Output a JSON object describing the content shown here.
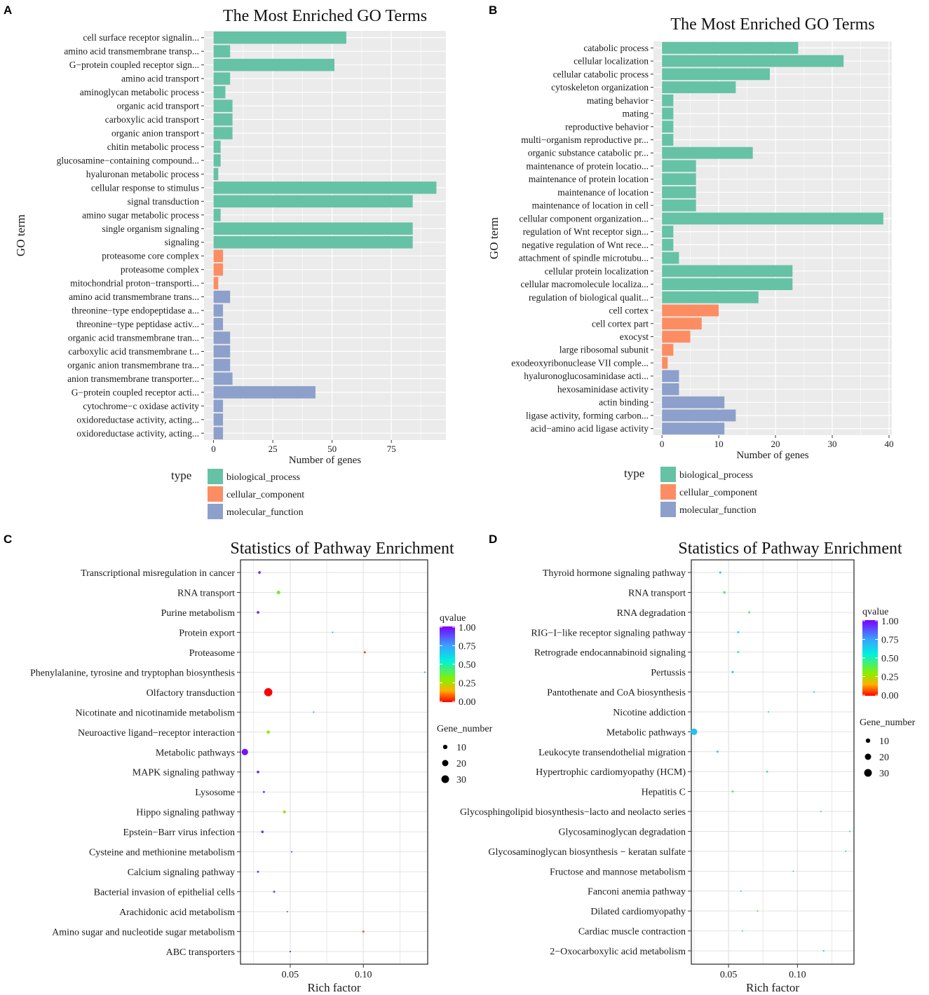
{
  "colors": {
    "biological_process": "#66C2A5",
    "cellular_component": "#FC8D62",
    "molecular_function": "#8DA0CB",
    "panel_bg": "#EBEBEB"
  },
  "panels": {
    "a": "A",
    "b": "B",
    "c": "C",
    "d": "D"
  },
  "chart_data": [
    {
      "id": "A",
      "type": "bar",
      "orientation": "horizontal",
      "title": "The Most Enriched GO Terms",
      "xlabel": "Number of genes",
      "ylabel": "GO term",
      "xlim": [
        -4,
        98
      ],
      "xticks": [
        0,
        25,
        50,
        75
      ],
      "legend_title": "type",
      "legend": [
        "biological_process",
        "cellular_component",
        "molecular_function"
      ],
      "categories": [
        "cell surface receptor signalin...",
        "amino acid transmembrane transp...",
        "G−protein coupled receptor sign...",
        "amino acid transport",
        "aminoglycan metabolic process",
        "organic acid transport",
        "carboxylic acid transport",
        "organic anion transport",
        "chitin metabolic process",
        "glucosamine−containing compound...",
        "hyaluronan metabolic process",
        "cellular response to stimulus",
        "signal transduction",
        "amino sugar metabolic process",
        "single organism signaling",
        "signaling",
        "proteasome core complex",
        "proteasome complex",
        "mitochondrial proton−transporti...",
        "amino acid transmembrane trans...",
        "threonine−type endopeptidase a...",
        "threonine−type peptidase activ...",
        "organic acid transmembrane tran...",
        "carboxylic acid transmembrane t...",
        "organic anion transmembrane tra...",
        "anion transmembrane transporter...",
        "G−protein coupled receptor acti...",
        "cytochrome−c oxidase activity",
        "oxidoreductase activity, acting...",
        "oxidoreductase activity, acting..."
      ],
      "values": [
        56,
        7,
        51,
        7,
        5,
        8,
        8,
        8,
        3,
        3,
        2,
        94,
        84,
        3,
        84,
        84,
        4,
        4,
        2,
        7,
        4,
        4,
        7,
        7,
        7,
        8,
        43,
        4,
        4,
        4
      ],
      "types": [
        "biological_process",
        "biological_process",
        "biological_process",
        "biological_process",
        "biological_process",
        "biological_process",
        "biological_process",
        "biological_process",
        "biological_process",
        "biological_process",
        "biological_process",
        "biological_process",
        "biological_process",
        "biological_process",
        "biological_process",
        "biological_process",
        "cellular_component",
        "cellular_component",
        "cellular_component",
        "molecular_function",
        "molecular_function",
        "molecular_function",
        "molecular_function",
        "molecular_function",
        "molecular_function",
        "molecular_function",
        "molecular_function",
        "molecular_function",
        "molecular_function",
        "molecular_function"
      ]
    },
    {
      "id": "B",
      "type": "bar",
      "orientation": "horizontal",
      "title": "The Most Enriched GO Terms",
      "xlabel": "Number of genes",
      "ylabel": "GO term",
      "xlim": [
        -1.5,
        40.5
      ],
      "xticks": [
        0,
        10,
        20,
        30,
        40
      ],
      "legend_title": "type",
      "legend": [
        "biological_process",
        "cellular_component",
        "molecular_function"
      ],
      "categories": [
        "catabolic process",
        "cellular localization",
        "cellular catabolic process",
        "cytoskeleton organization",
        "mating behavior",
        "mating",
        "reproductive behavior",
        "multi−organism reproductive pr...",
        "organic substance catabolic pr...",
        "maintenance of protein locatio...",
        "maintenance of protein location",
        "maintenance of location",
        "maintenance of location in cell",
        "cellular component organization...",
        "regulation of Wnt receptor sign...",
        "negative regulation of Wnt rece...",
        "attachment of spindle microtubu...",
        "cellular protein localization",
        "cellular macromolecule localiza...",
        "regulation of biological qualit...",
        "cell cortex",
        "cell cortex part",
        "exocyst",
        "large ribosomal subunit",
        "exodeoxyribonuclease VII comple...",
        "hyaluronoglucosaminidase acti...",
        "hexosaminidase activity",
        "actin binding",
        "ligase activity, forming carbon...",
        "acid−amino acid ligase activity"
      ],
      "values": [
        24,
        32,
        19,
        13,
        2,
        2,
        2,
        2,
        16,
        6,
        6,
        6,
        6,
        39,
        2,
        2,
        3,
        23,
        23,
        17,
        10,
        7,
        5,
        2,
        1,
        3,
        3,
        11,
        13,
        11
      ],
      "types": [
        "biological_process",
        "biological_process",
        "biological_process",
        "biological_process",
        "biological_process",
        "biological_process",
        "biological_process",
        "biological_process",
        "biological_process",
        "biological_process",
        "biological_process",
        "biological_process",
        "biological_process",
        "biological_process",
        "biological_process",
        "biological_process",
        "biological_process",
        "biological_process",
        "biological_process",
        "biological_process",
        "cellular_component",
        "cellular_component",
        "cellular_component",
        "cellular_component",
        "cellular_component",
        "molecular_function",
        "molecular_function",
        "molecular_function",
        "molecular_function",
        "molecular_function"
      ]
    },
    {
      "id": "C",
      "type": "scatter",
      "title": "Statistics of Pathway Enrichment",
      "xlabel": "Rich factor",
      "xlim": [
        0.016,
        0.144
      ],
      "xticks": [
        0.05,
        0.1
      ],
      "xtick_labels": [
        "0.05",
        "0.10"
      ],
      "categories": [
        "Transcriptional misregulation in cancer",
        "RNA transport",
        "Purine metabolism",
        "Protein export",
        "Proteasome",
        "Phenylalanine, tyrosine and tryptophan biosynthesis",
        "Olfactory transduction",
        "Nicotinate and nicotinamide metabolism",
        "Neuroactive ligand−receptor interaction",
        "Metabolic pathways",
        "MAPK signaling pathway",
        "Lysosome",
        "Hippo signaling pathway",
        "Epstein−Barr virus infection",
        "Cysteine and methionine metabolism",
        "Calcium signaling pathway",
        "Bacterial invasion of epithelial cells",
        "Arachidonic acid metabolism",
        "Amino sugar and nucleotide sugar metabolism",
        "ABC transporters"
      ],
      "x": [
        0.029,
        0.042,
        0.028,
        0.079,
        0.101,
        0.142,
        0.035,
        0.066,
        0.035,
        0.019,
        0.028,
        0.032,
        0.046,
        0.031,
        0.051,
        0.028,
        0.039,
        0.048,
        0.1,
        0.05
      ],
      "gene_number": [
        3,
        6,
        3,
        1,
        2,
        1,
        31,
        1,
        5,
        19,
        3,
        2,
        4,
        3,
        1,
        2,
        2,
        1,
        2,
        1
      ],
      "qvalue": [
        0.95,
        0.35,
        0.95,
        0.7,
        0.05,
        0.72,
        0.0,
        0.72,
        0.3,
        0.97,
        0.95,
        0.9,
        0.28,
        0.93,
        0.86,
        0.9,
        0.88,
        0.82,
        0.08,
        0.92
      ],
      "qvalue_title": "qvalue",
      "qvalue_ticks": [
        "1.00",
        "0.75",
        "0.50",
        "0.25",
        "0.00"
      ],
      "size_title": "Gene_number",
      "size_legend": [
        "10",
        "20",
        "30"
      ]
    },
    {
      "id": "D",
      "type": "scatter",
      "title": "Statistics of Pathway Enrichment",
      "xlabel": "Rich factor",
      "xlim": [
        0.023,
        0.141
      ],
      "xticks": [
        0.05,
        0.1
      ],
      "xtick_labels": [
        "0.05",
        "0.10"
      ],
      "categories": [
        "Thyroid hormone signaling pathway",
        "RNA transport",
        "RNA degradation",
        "RIG−I−like receptor signaling pathway",
        "Retrograde endocannabinoid signaling",
        "Pertussis",
        "Pantothenate and CoA biosynthesis",
        "Nicotine addiction",
        "Metabolic pathways",
        "Leukocyte transendothelial migration",
        "Hypertrophic cardiomyopathy (HCM)",
        "Hepatitis C",
        "Glycosphingolipid biosynthesis−lacto and neolacto series",
        "Glycosaminoglycan degradation",
        "Glycosaminoglycan biosynthesis − keratan sulfate",
        "Fructose and mannose metabolism",
        "Fanconi anemia pathway",
        "Dilated cardiomyopathy",
        "Cardiac muscle contraction",
        "2−Oxocarboxylic acid metabolism"
      ],
      "x": [
        0.044,
        0.047,
        0.065,
        0.057,
        0.057,
        0.053,
        0.112,
        0.079,
        0.025,
        0.042,
        0.078,
        0.053,
        0.117,
        0.138,
        0.135,
        0.097,
        0.059,
        0.071,
        0.06,
        0.119
      ],
      "gene_number": [
        2,
        3,
        2,
        2,
        2,
        2,
        1,
        1,
        19,
        2,
        2,
        2,
        1,
        1,
        1,
        1,
        1,
        1,
        1,
        1
      ],
      "qvalue": [
        0.65,
        0.42,
        0.42,
        0.58,
        0.5,
        0.68,
        0.62,
        0.52,
        0.66,
        0.65,
        0.45,
        0.42,
        0.48,
        0.48,
        0.52,
        0.42,
        0.58,
        0.42,
        0.48,
        0.62
      ],
      "qvalue_title": "qvalue",
      "qvalue_ticks": [
        "1.00",
        "0.75",
        "0.50",
        "0.25",
        "0.00"
      ],
      "size_title": "Gene_number",
      "size_legend": [
        "10",
        "20",
        "30"
      ]
    }
  ]
}
